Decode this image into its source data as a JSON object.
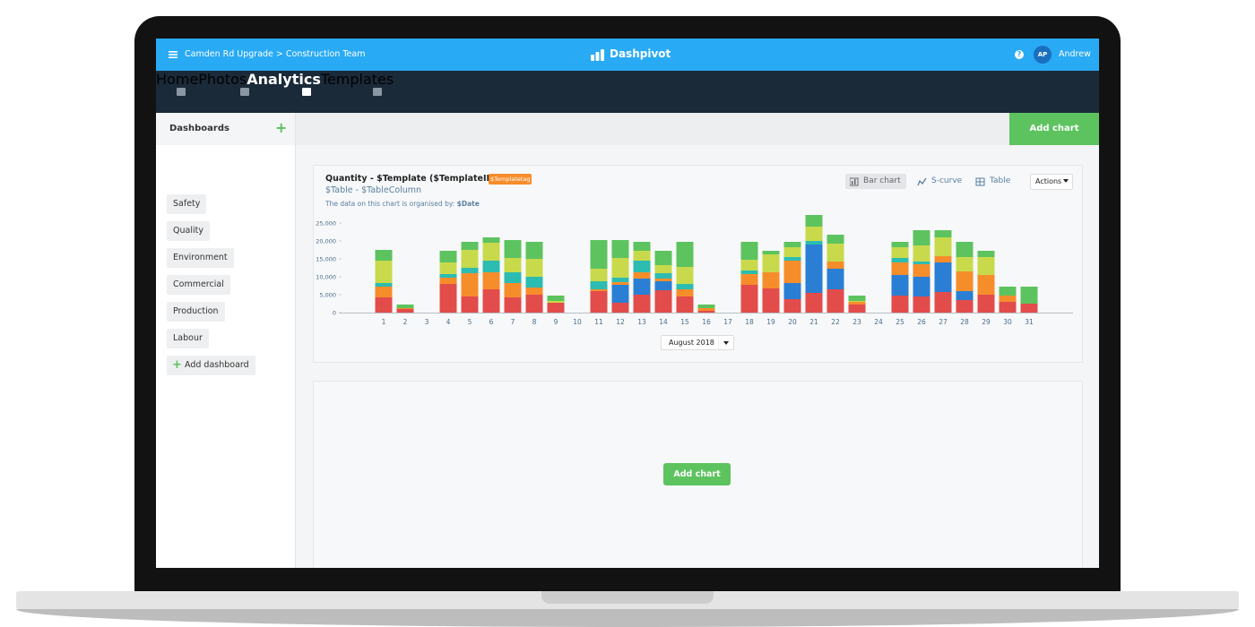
{
  "topbar": {
    "breadcrumb": "Camden Rd Upgrade > Construction Team",
    "brand": "Dashpivot",
    "avatar": "AP",
    "user": "Andrew"
  },
  "nav": [
    "Home",
    "Photos",
    "Analytics",
    "Templates"
  ],
  "sidebar": {
    "title": "Dashboards",
    "items": [
      "Safety",
      "Quality",
      "Environment",
      "Commercial",
      "Production",
      "Labour"
    ],
    "add": "Add dashboard"
  },
  "toolbar": {
    "add_chart": "Add chart"
  },
  "chart_card": {
    "title": "Quantity - $Template ($TemplateID)",
    "tag": "$Templatetag",
    "subtitle": "$Table - $TableColumn",
    "note": "The data on this chart is organised by:",
    "note_value": "$Date",
    "views": [
      "Bar chart",
      "S-curve",
      "Table"
    ],
    "actions": "Actions",
    "period": "August 2018"
  },
  "empty_card": {
    "add_chart": "Add chart"
  },
  "chart_data": {
    "type": "bar",
    "stacked": true,
    "categories": [
      "1",
      "2",
      "3",
      "4",
      "5",
      "6",
      "7",
      "8",
      "9",
      "10",
      "11",
      "12",
      "13",
      "14",
      "15",
      "16",
      "17",
      "18",
      "19",
      "20",
      "21",
      "22",
      "23",
      "24",
      "25",
      "26",
      "27",
      "28",
      "29",
      "30",
      "31"
    ],
    "series": [
      {
        "color": "#e24c4b",
        "values": [
          4250,
          1000,
          0,
          8000,
          4500,
          6500,
          4250,
          5000,
          2750,
          0,
          6000,
          2750,
          5000,
          6250,
          4500,
          500,
          0,
          7750,
          6750,
          3750,
          5500,
          6500,
          2250,
          0,
          4750,
          4500,
          5750,
          3500,
          5000,
          3000,
          2500
        ]
      },
      {
        "color": "#2a7fd4",
        "values": [
          0,
          0,
          0,
          0,
          0,
          0,
          0,
          0,
          0,
          0,
          0,
          5000,
          4500,
          2500,
          0,
          0,
          0,
          0,
          0,
          4500,
          13500,
          5750,
          0,
          0,
          5750,
          5500,
          8250,
          2500,
          0,
          0,
          0
        ]
      },
      {
        "color": "#f68d2b",
        "values": [
          3000,
          250,
          0,
          1750,
          6500,
          4750,
          4000,
          2000,
          0,
          0,
          500,
          750,
          1750,
          750,
          2000,
          750,
          0,
          3000,
          4500,
          6250,
          0,
          2000,
          750,
          0,
          3500,
          3500,
          1750,
          5500,
          5500,
          1750,
          0
        ]
      },
      {
        "color": "#2cbcb1",
        "values": [
          1000,
          0,
          0,
          1000,
          1500,
          3250,
          3000,
          3000,
          0,
          0,
          2250,
          1250,
          3250,
          1500,
          1500,
          0,
          0,
          1000,
          0,
          1000,
          1000,
          0,
          0,
          0,
          1250,
          750,
          0,
          0,
          0,
          0,
          0
        ]
      },
      {
        "color": "#c8da4b",
        "values": [
          6250,
          0,
          0,
          3250,
          5000,
          5000,
          4000,
          5000,
          500,
          0,
          3500,
          5500,
          2750,
          2250,
          4750,
          0,
          0,
          3000,
          5000,
          2750,
          4000,
          5000,
          250,
          0,
          3000,
          4500,
          5250,
          4000,
          5000,
          0,
          0
        ]
      },
      {
        "color": "#5dc35f",
        "values": [
          3000,
          1000,
          0,
          3250,
          2250,
          1500,
          5000,
          4750,
          1500,
          0,
          8000,
          5000,
          2500,
          4000,
          7000,
          1000,
          0,
          5000,
          1000,
          1500,
          3250,
          2500,
          1500,
          0,
          1500,
          4250,
          2000,
          4250,
          1750,
          2500,
          4750
        ]
      }
    ],
    "ylim": [
      0,
      27500
    ],
    "yticks": [
      0,
      {
        "value": 5000,
        "label": "5,000"
      },
      {
        "value": 10000,
        "label": "10,000"
      },
      {
        "value": 15000,
        "label": "15,000"
      },
      {
        "value": 20000,
        "label": "20,000"
      },
      {
        "value": 25000,
        "label": "25,000"
      }
    ]
  }
}
